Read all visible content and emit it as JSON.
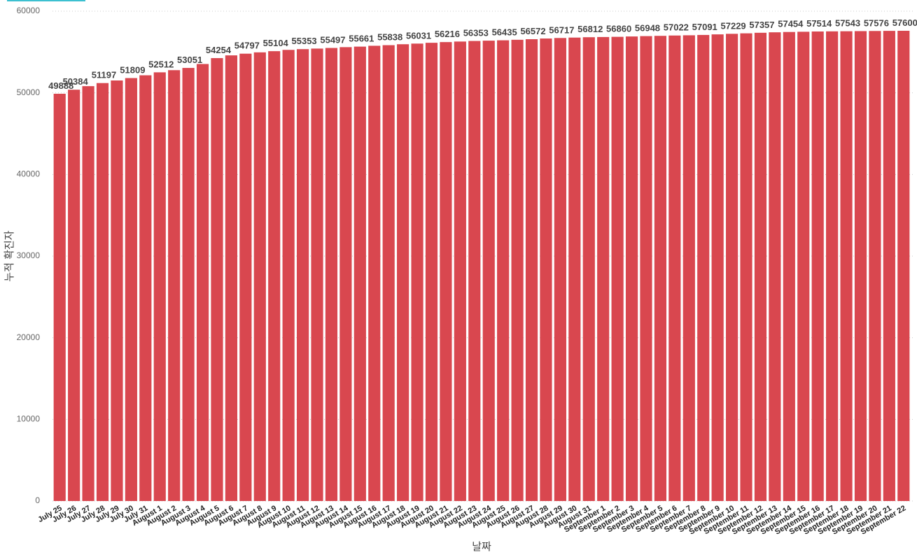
{
  "chart_data": {
    "type": "bar",
    "x_label": "날짜",
    "y_label": "누적 확진자",
    "categories": [
      "July 25",
      "July 26",
      "July 27",
      "July 28",
      "July 29",
      "July 30",
      "July 31",
      "August 1",
      "August 2",
      "August 3",
      "August 4",
      "August 5",
      "August 6",
      "August 7",
      "August 8",
      "August 9",
      "August 10",
      "August 11",
      "August 12",
      "August 13",
      "August 14",
      "August 15",
      "August 16",
      "August 17",
      "August 18",
      "August 19",
      "August 20",
      "August 21",
      "August 22",
      "August 23",
      "August 24",
      "August 25",
      "August 26",
      "August 27",
      "August 28",
      "August 29",
      "August 30",
      "August 31",
      "September 1",
      "September 2",
      "September 3",
      "September 4",
      "September 5",
      "September 6",
      "September 7",
      "September 8",
      "September 9",
      "September 10",
      "September 11",
      "September 12",
      "September 13",
      "September 14",
      "September 15",
      "September 16",
      "September 17",
      "September 18",
      "September 19",
      "September 20",
      "September 21",
      "September 22"
    ],
    "values": [
      49888,
      50384,
      50818,
      51197,
      51514,
      51809,
      52149,
      52512,
      52778,
      53051,
      53533,
      54254,
      54589,
      54797,
      54959,
      55104,
      55262,
      55353,
      55421,
      55497,
      55596,
      55661,
      55764,
      55838,
      55953,
      56031,
      56131,
      56216,
      56283,
      56353,
      56391,
      56435,
      56499,
      56572,
      56655,
      56717,
      56768,
      56812,
      56837,
      56860,
      56904,
      56948,
      56981,
      57022,
      57050,
      57091,
      57160,
      57229,
      57289,
      57357,
      57415,
      57454,
      57482,
      57514,
      57530,
      57543,
      57560,
      57576,
      57590,
      57600
    ],
    "color": "#d9474f",
    "ylim": [
      0,
      60000
    ],
    "yticks": [
      0,
      10000,
      20000,
      30000,
      40000,
      50000,
      60000
    ],
    "grid": true
  }
}
